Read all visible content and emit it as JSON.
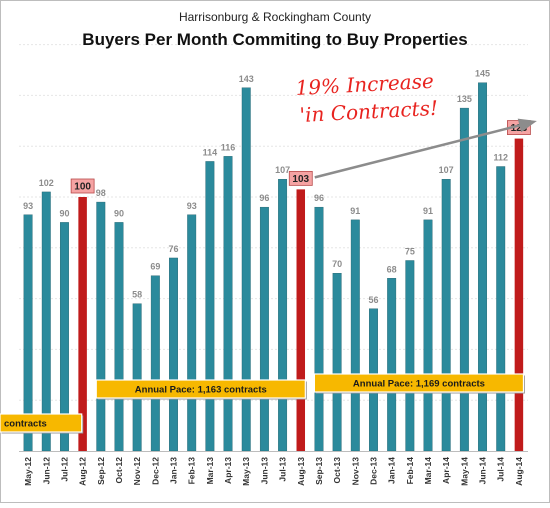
{
  "chart_data": {
    "type": "bar",
    "subtitle": "Harrisonburg & Rockingham County",
    "title": "Buyers Per Month Commiting to Buy Properties",
    "categories": [
      "May-12",
      "Jun-12",
      "Jul-12",
      "Aug-12",
      "Sep-12",
      "Oct-12",
      "Nov-12",
      "Dec-12",
      "Jan-13",
      "Feb-13",
      "Mar-13",
      "Apr-13",
      "May-13",
      "Jun-13",
      "Jul-13",
      "Aug-13",
      "Sep-13",
      "Oct-13",
      "Nov-13",
      "Dec-13",
      "Jan-14",
      "Feb-14",
      "Mar-14",
      "Apr-14",
      "May-14",
      "Jun-14",
      "Jul-14",
      "Aug-14"
    ],
    "values": [
      93,
      102,
      90,
      100,
      98,
      90,
      58,
      69,
      76,
      93,
      114,
      116,
      143,
      96,
      107,
      103,
      96,
      70,
      91,
      56,
      68,
      75,
      91,
      107,
      135,
      145,
      112,
      123
    ],
    "highlight_categories": [
      "Aug-12",
      "Aug-13",
      "Aug-14"
    ],
    "ylim": [
      0,
      160
    ],
    "grid": true,
    "colors": {
      "bar": "#2b8a9c",
      "highlight_bar": "#c01b1b",
      "highlight_label_bg": "#f5a3a3",
      "pace_box": "#f7b800",
      "arrow": "#8c8c8c",
      "note": "#e8231f"
    },
    "annotations": {
      "pace_boxes": [
        {
          "text": "Annual Pace: 1,163 contracts",
          "from": "Sep-12",
          "to": "Aug-13"
        },
        {
          "text": "Annual Pace: 1,169 contracts",
          "from": "Sep-13",
          "to": "Aug-14"
        },
        {
          "text": "contracts",
          "from": "May-12",
          "to": "Aug-12"
        }
      ],
      "note_lines": [
        "19% Increase",
        "'in Contracts!"
      ]
    }
  }
}
